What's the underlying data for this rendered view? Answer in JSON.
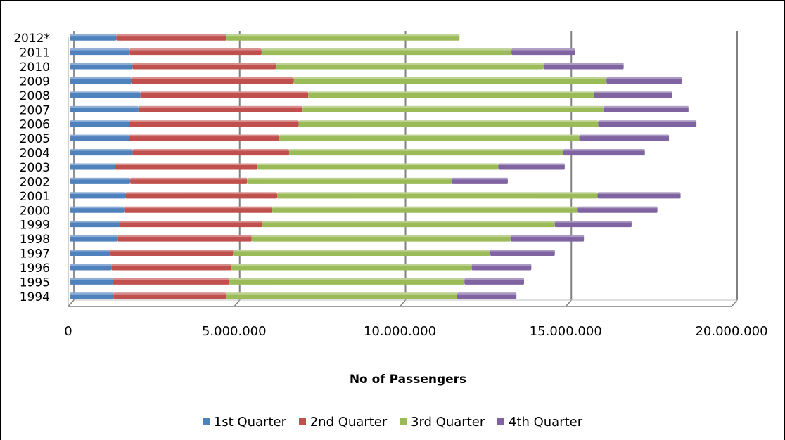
{
  "chart_data": {
    "type": "bar",
    "orientation": "horizontal",
    "stacked": true,
    "three_d": true,
    "title": "",
    "xlabel": "No of Passengers",
    "ylabel": "",
    "xlim": [
      0,
      20000000
    ],
    "x_ticks": [
      0,
      5000000,
      10000000,
      15000000,
      20000000
    ],
    "x_tick_labels": [
      "0",
      "5.000.000",
      "10.000.000",
      "15.000.000",
      "20.000.000"
    ],
    "grid": true,
    "legend_position": "bottom",
    "categories": [
      "1994",
      "1995",
      "1996",
      "1997",
      "1998",
      "1999",
      "2000",
      "2001",
      "2002",
      "2003",
      "2004",
      "2005",
      "2006",
      "2007",
      "2008",
      "2009",
      "2010",
      "2011",
      "2012*"
    ],
    "series": [
      {
        "name": "1st Quarter",
        "color": "#4f81bd",
        "values": [
          1320000,
          1300000,
          1260000,
          1230000,
          1450000,
          1520000,
          1650000,
          1680000,
          1830000,
          1370000,
          1900000,
          1790000,
          1800000,
          2080000,
          2140000,
          1860000,
          1900000,
          1810000,
          1410000
        ]
      },
      {
        "name": "2nd Quarter",
        "color": "#c0504d",
        "values": [
          3400000,
          3520000,
          3620000,
          3710000,
          4050000,
          4290000,
          4470000,
          4590000,
          3530000,
          4310000,
          4730000,
          4550000,
          5120000,
          4960000,
          5070000,
          4910000,
          4330000,
          3990000,
          3330000
        ]
      },
      {
        "name": "3rd Quarter",
        "color": "#9bbb59",
        "values": [
          6990000,
          7110000,
          7270000,
          7770000,
          7820000,
          8850000,
          9230000,
          9680000,
          6190000,
          7270000,
          8290000,
          9060000,
          9050000,
          9090000,
          8630000,
          9450000,
          8090000,
          7550000,
          7040000
        ]
      },
      {
        "name": "4th Quarter",
        "color": "#8064a2",
        "values": [
          1790000,
          1800000,
          1800000,
          1950000,
          2220000,
          2320000,
          2410000,
          2510000,
          1690000,
          2010000,
          2460000,
          2710000,
          2970000,
          2570000,
          2370000,
          2280000,
          2420000,
          1920000,
          0
        ]
      }
    ]
  }
}
